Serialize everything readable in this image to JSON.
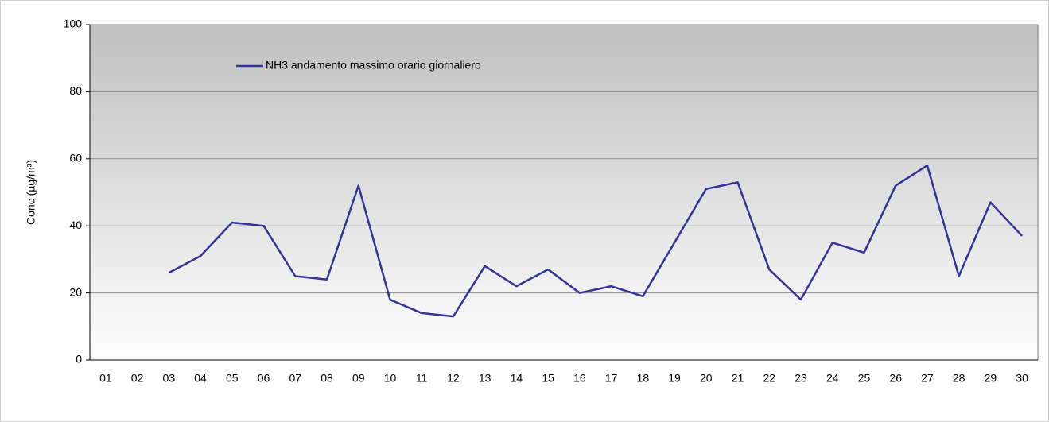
{
  "chart_data": {
    "type": "line",
    "ylabel": "Conc (µg/m³)",
    "categories": [
      "01",
      "02",
      "03",
      "04",
      "05",
      "06",
      "07",
      "08",
      "09",
      "10",
      "11",
      "12",
      "13",
      "14",
      "15",
      "16",
      "17",
      "18",
      "19",
      "20",
      "21",
      "22",
      "23",
      "24",
      "25",
      "26",
      "27",
      "28",
      "29",
      "30"
    ],
    "series": [
      {
        "name": "NH3 andamento massimo orario giornaliero",
        "color": "#333399",
        "values": [
          null,
          null,
          26,
          31,
          41,
          40,
          25,
          24,
          52,
          18,
          14,
          13,
          28,
          22,
          27,
          20,
          22,
          19,
          35,
          51,
          53,
          27,
          18,
          35,
          32,
          52,
          58,
          25,
          47,
          37
        ]
      }
    ],
    "ylim": [
      0,
      100
    ],
    "yticks": [
      0,
      20,
      40,
      60,
      80,
      100
    ],
    "grid": true,
    "legend": "top-left"
  }
}
